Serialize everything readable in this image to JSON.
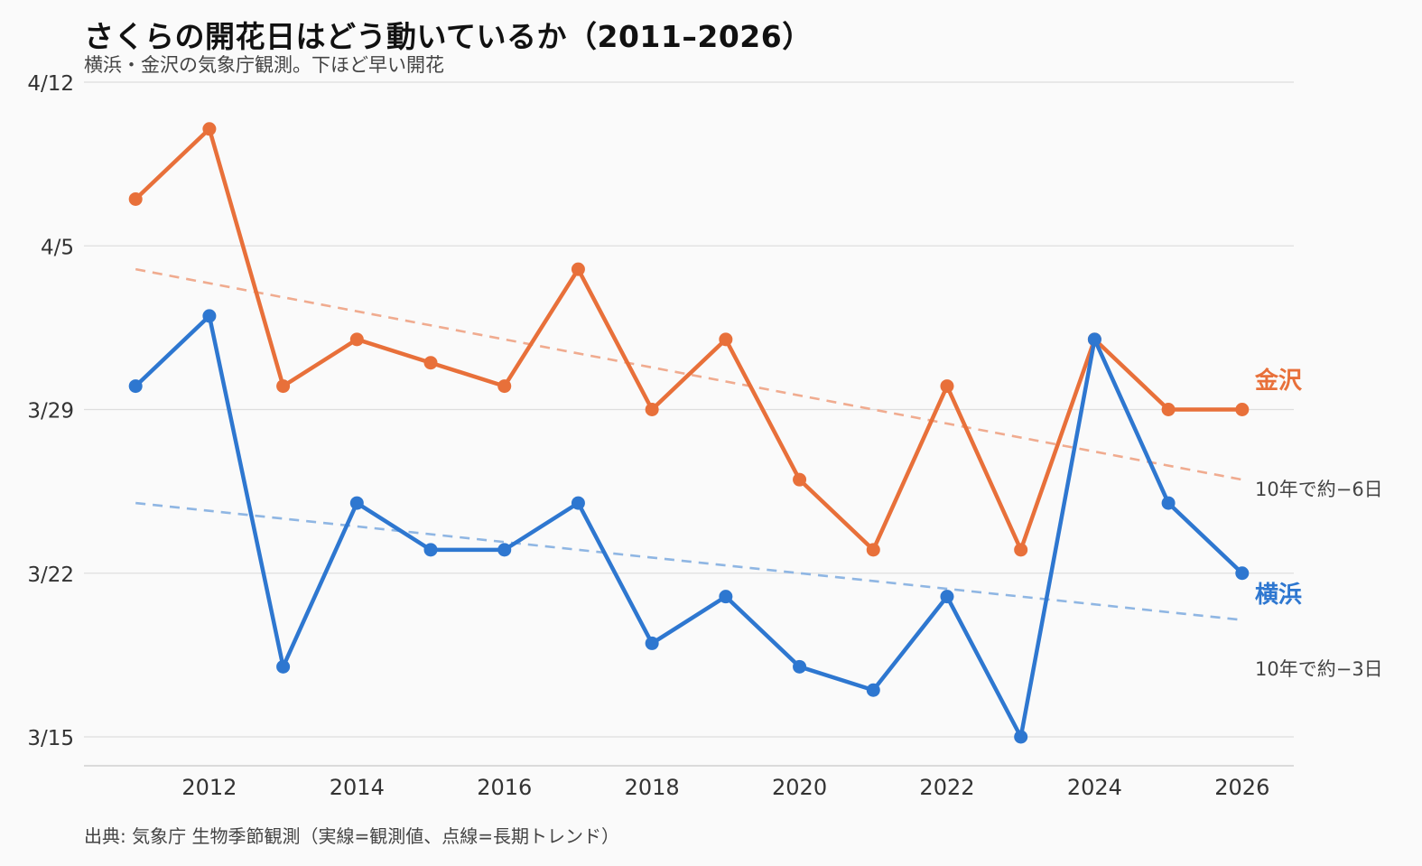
{
  "title": "さくらの開花日はどう動いているか（2011–2026）",
  "subtitle": "横浜・金沢の気象庁観測。下ほど早い開花",
  "source": "出典: 気象庁 生物季節観測（実線=観測値、点線=長期トレンド）",
  "chart_data": {
    "type": "line",
    "title": "さくらの開花日はどう動いているか（2011–2026）",
    "subtitle": "横浜・金沢の気象庁観測。下ほど早い開花",
    "xlabel": "",
    "ylabel": "",
    "x": [
      2011,
      2012,
      2013,
      2014,
      2015,
      2016,
      2017,
      2018,
      2019,
      2020,
      2021,
      2022,
      2023,
      2024,
      2025,
      2026
    ],
    "xlim": [
      2010.3,
      2026.7
    ],
    "x_ticks": [
      2012,
      2014,
      2016,
      2018,
      2020,
      2022,
      2024,
      2026
    ],
    "ylim": [
      "03-15",
      "04-12"
    ],
    "y_ticks": [
      "03-15",
      "03-22",
      "03-29",
      "04-05",
      "04-12"
    ],
    "y_tick_labels": [
      "3/15",
      "3/22",
      "3/29",
      "4/5",
      "4/12"
    ],
    "grid": "horizontal",
    "series": [
      {
        "name": "金沢",
        "color": "#e8703a",
        "values": [
          "04-07",
          "04-10",
          "03-30",
          "04-01",
          "03-31",
          "03-30",
          "04-04",
          "03-29",
          "04-01",
          "03-26",
          "03-23",
          "03-30",
          "03-23",
          "04-01",
          "03-29",
          "03-29"
        ],
        "trend": {
          "from": [
            "2011",
            "04-04"
          ],
          "to": [
            "2026",
            "03-26"
          ],
          "color": "#f0ab8f"
        },
        "trend_label": "10年で約−6日"
      },
      {
        "name": "横浜",
        "color": "#2e77d0",
        "values": [
          "03-30",
          "04-02",
          "03-18",
          "03-25",
          "03-23",
          "03-23",
          "03-25",
          "03-19",
          "03-21",
          "03-18",
          "03-17",
          "03-21",
          "03-15",
          "04-01",
          "03-25",
          "03-22"
        ],
        "trend": {
          "from": [
            "2011",
            "03-25"
          ],
          "to": [
            "2026",
            "03-20"
          ],
          "color": "#8fb6e3"
        },
        "trend_label": "10年で約−3日"
      }
    ],
    "legend": "direct labels at right"
  }
}
